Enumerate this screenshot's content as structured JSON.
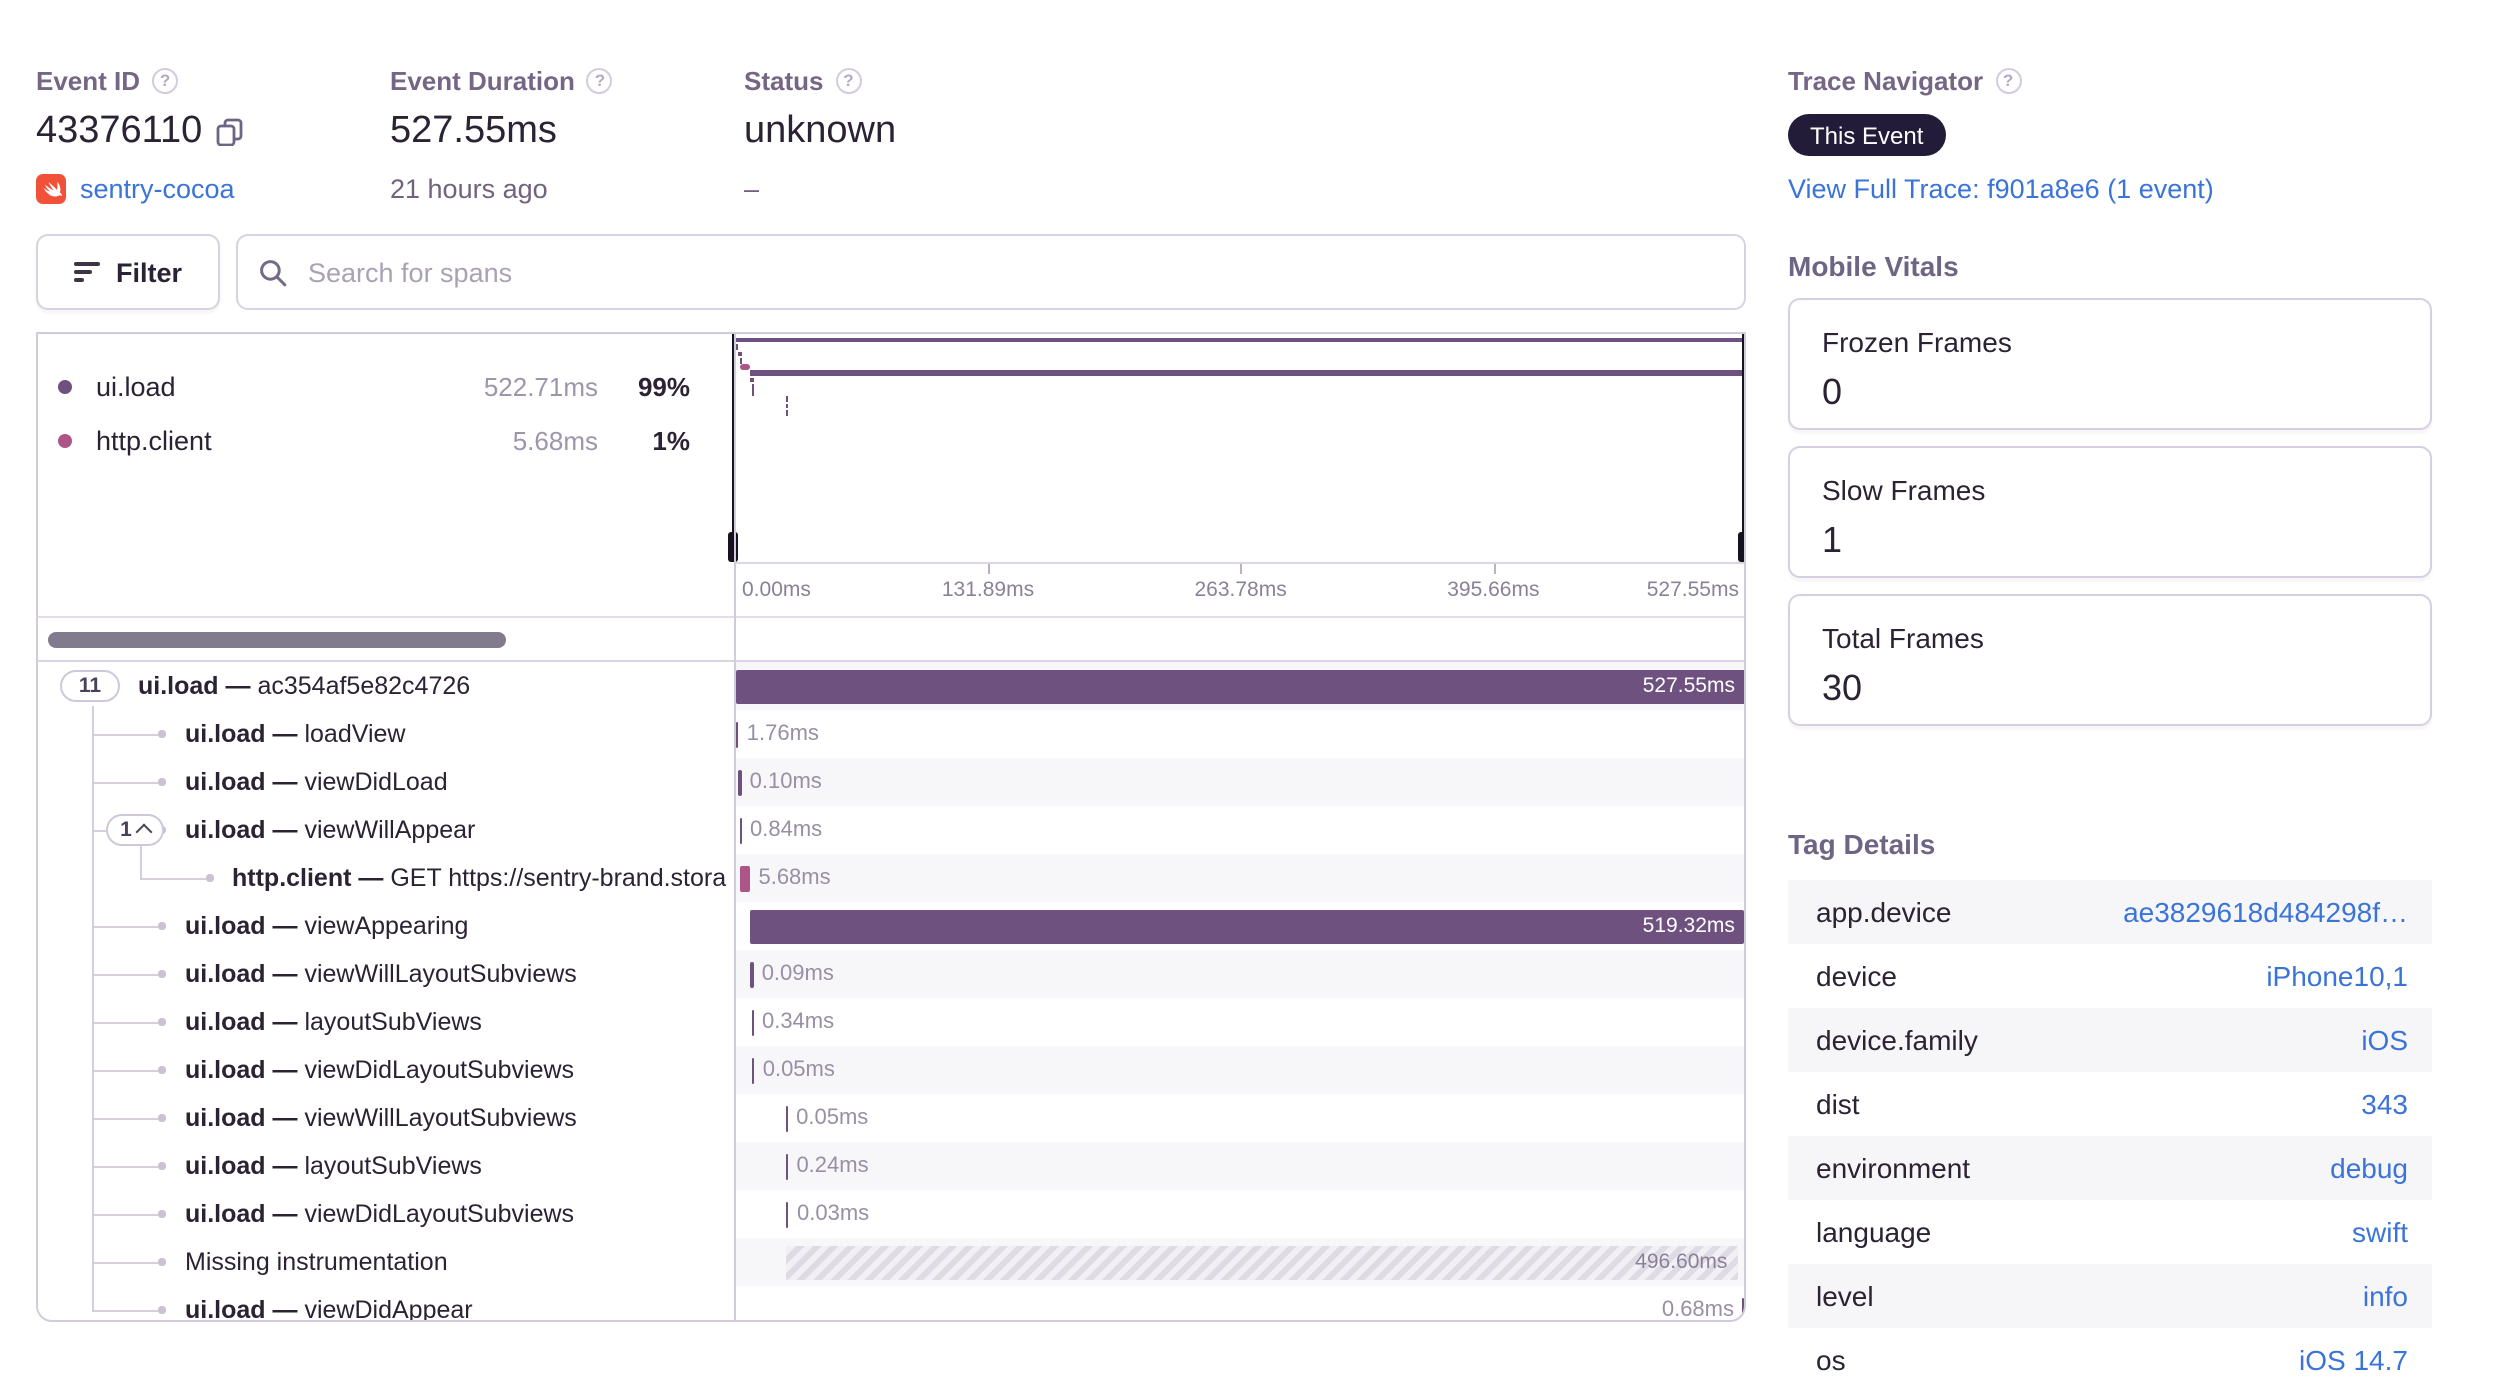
{
  "header": {
    "event_id": {
      "label": "Event ID",
      "value": "43376110",
      "project": "sentry-cocoa"
    },
    "event_duration": {
      "label": "Event Duration",
      "value": "527.55ms",
      "time_ago": "21 hours ago"
    },
    "status": {
      "label": "Status",
      "value": "unknown",
      "sub_value": "–"
    },
    "trace_navigator": {
      "label": "Trace Navigator",
      "badge": "This Event",
      "link": "View Full Trace: f901a8e6 (1 event)"
    }
  },
  "toolbar": {
    "filter_label": "Filter",
    "search_placeholder": "Search for spans"
  },
  "span_summary": [
    {
      "op": "ui.load",
      "duration": "522.71ms",
      "percentage": "99%",
      "color": "#6f5180"
    },
    {
      "op": "http.client",
      "duration": "5.68ms",
      "percentage": "1%",
      "color": "#ad5587"
    }
  ],
  "minimap_axis": [
    "0.00ms",
    "131.89ms",
    "263.78ms",
    "395.66ms",
    "527.55ms"
  ],
  "total_duration_ms": 527.55,
  "spans": [
    {
      "op": "ui.load",
      "name": "ac354af5e82c4726",
      "depth": 0,
      "count": "11",
      "start_ms": 0,
      "duration_ms": 527.55,
      "duration_label": "527.55ms",
      "type": "ui",
      "label_pos": "inside"
    },
    {
      "op": "ui.load",
      "name": "loadView",
      "depth": 1,
      "start_ms": 0.2,
      "duration_ms": 1.76,
      "duration_label": "1.76ms",
      "type": "ui",
      "label_pos": "right"
    },
    {
      "op": "ui.load",
      "name": "viewDidLoad",
      "depth": 1,
      "start_ms": 2.0,
      "duration_ms": 0.1,
      "duration_label": "0.10ms",
      "type": "ui",
      "label_pos": "right"
    },
    {
      "op": "ui.load",
      "name": "viewWillAppear",
      "depth": 1,
      "count": "1",
      "expanded": true,
      "start_ms": 2.2,
      "duration_ms": 0.84,
      "duration_label": "0.84ms",
      "type": "ui",
      "label_pos": "right"
    },
    {
      "op": "http.client",
      "name": "GET https://sentry-brand.stora",
      "depth": 2,
      "start_ms": 2.4,
      "duration_ms": 5.68,
      "duration_label": "5.68ms",
      "type": "http",
      "label_pos": "right"
    },
    {
      "op": "ui.load",
      "name": "viewAppearing",
      "depth": 1,
      "start_ms": 8.2,
      "duration_ms": 519.32,
      "duration_label": "519.32ms",
      "type": "ui",
      "label_pos": "inside"
    },
    {
      "op": "ui.load",
      "name": "viewWillLayoutSubviews",
      "depth": 1,
      "start_ms": 8.3,
      "duration_ms": 0.09,
      "duration_label": "0.09ms",
      "type": "ui",
      "label_pos": "right"
    },
    {
      "op": "ui.load",
      "name": "layoutSubViews",
      "depth": 1,
      "start_ms": 8.45,
      "duration_ms": 0.34,
      "duration_label": "0.34ms",
      "type": "ui",
      "label_pos": "right"
    },
    {
      "op": "ui.load",
      "name": "viewDidLayoutSubviews",
      "depth": 1,
      "start_ms": 8.85,
      "duration_ms": 0.05,
      "duration_label": "0.05ms",
      "type": "ui",
      "label_pos": "right"
    },
    {
      "op": "ui.load",
      "name": "viewWillLayoutSubviews",
      "depth": 1,
      "start_ms": 26.3,
      "duration_ms": 0.05,
      "duration_label": "0.05ms",
      "type": "ui",
      "label_pos": "right"
    },
    {
      "op": "ui.load",
      "name": "layoutSubViews",
      "depth": 1,
      "start_ms": 26.45,
      "duration_ms": 0.24,
      "duration_label": "0.24ms",
      "type": "ui",
      "label_pos": "right"
    },
    {
      "op": "ui.load",
      "name": "viewDidLayoutSubviews",
      "depth": 1,
      "start_ms": 26.75,
      "duration_ms": 0.03,
      "duration_label": "0.03ms",
      "type": "ui",
      "label_pos": "right"
    },
    {
      "op": "",
      "name": "Missing instrumentation",
      "depth": 1,
      "start_ms": 27.0,
      "duration_ms": 496.6,
      "duration_label": "496.60ms",
      "type": "gap",
      "label_pos": "inside"
    },
    {
      "op": "ui.load",
      "name": "viewDidAppear",
      "depth": 1,
      "start_ms": 526.87,
      "duration_ms": 0.68,
      "duration_label": "0.68ms",
      "type": "ui",
      "label_pos": "left"
    }
  ],
  "mobile_vitals": {
    "title": "Mobile Vitals",
    "cards": [
      {
        "label": "Frozen Frames",
        "value": "0"
      },
      {
        "label": "Slow Frames",
        "value": "1"
      },
      {
        "label": "Total Frames",
        "value": "30"
      }
    ]
  },
  "tag_details": {
    "title": "Tag Details",
    "rows": [
      {
        "key": "app.device",
        "value": "ae3829618d484298f…"
      },
      {
        "key": "device",
        "value": "iPhone10,1"
      },
      {
        "key": "device.family",
        "value": "iOS"
      },
      {
        "key": "dist",
        "value": "343"
      },
      {
        "key": "environment",
        "value": "debug"
      },
      {
        "key": "language",
        "value": "swift"
      },
      {
        "key": "level",
        "value": "info"
      },
      {
        "key": "os",
        "value": "iOS 14.7"
      }
    ]
  },
  "colors": {
    "ui_span": "#6f5180",
    "http_span": "#ad5587",
    "gap_text": "#8a8198",
    "link": "#3b74d9",
    "badge_bg": "#231c39",
    "swift": "#f05138"
  }
}
